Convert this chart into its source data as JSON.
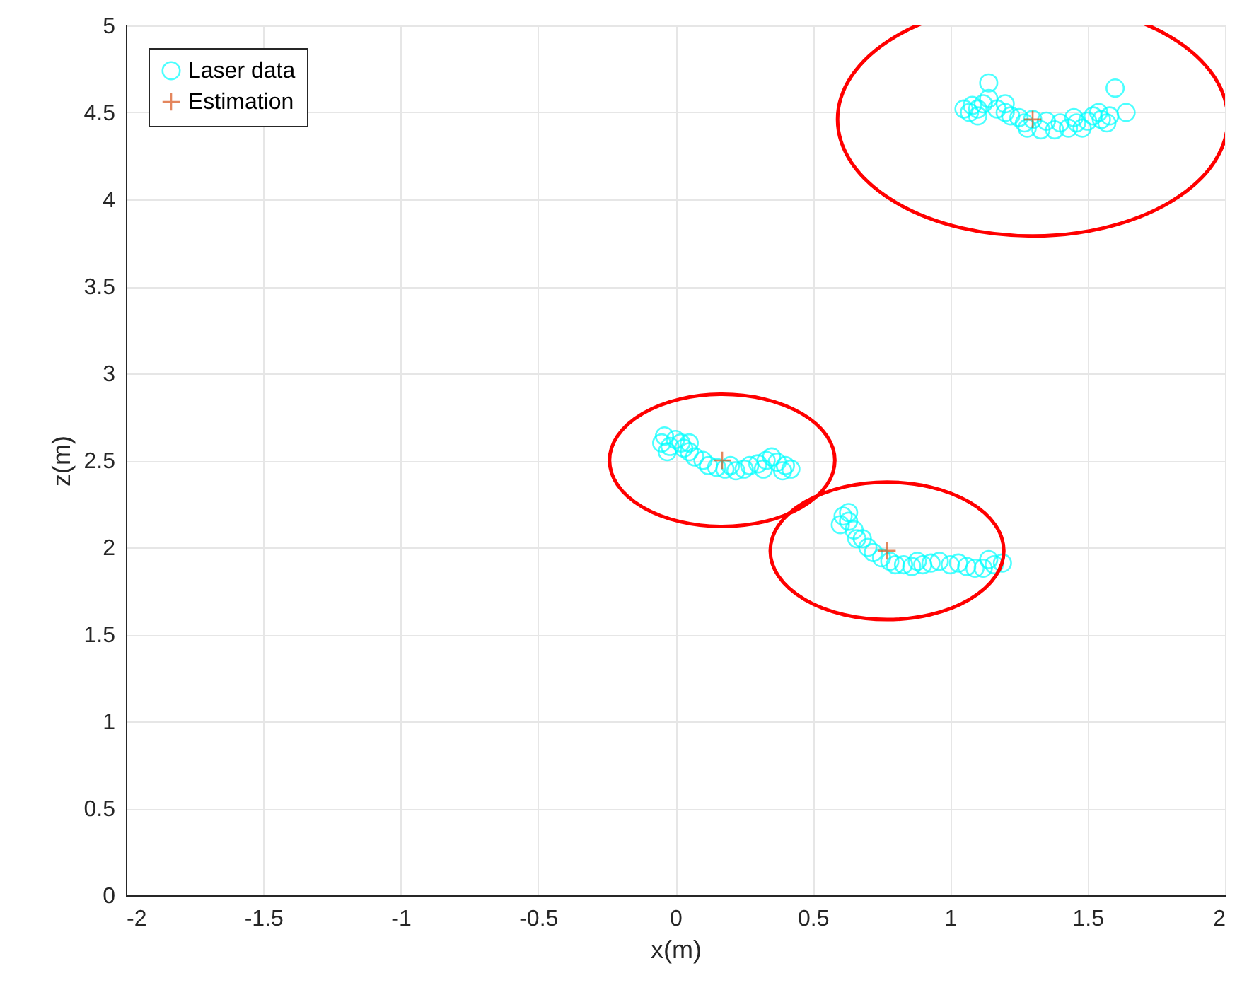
{
  "chart_data": {
    "type": "scatter",
    "xlabel": "x(m)",
    "ylabel": "z(m)",
    "xlim": [
      -2,
      2
    ],
    "xticks": [
      -2,
      -1.5,
      -1,
      -0.5,
      0,
      0.5,
      1,
      1.5,
      2
    ],
    "ylim": [
      0,
      5
    ],
    "yticks": [
      0,
      0.5,
      1,
      1.5,
      2,
      2.5,
      3,
      3.5,
      4,
      4.5,
      5
    ],
    "grid": true,
    "legend": "top left",
    "series": [
      {
        "name": "Laser data",
        "color": "#00ffff",
        "marker": "circle",
        "x": [
          1.05,
          1.07,
          1.08,
          1.1,
          1.12,
          1.14,
          1.14,
          1.17,
          1.2,
          1.22,
          1.25,
          1.27,
          1.28,
          1.3,
          1.33,
          1.35,
          1.38,
          1.4,
          1.43,
          1.46,
          1.48,
          1.5,
          1.52,
          1.54,
          1.55,
          1.57,
          1.58,
          1.6,
          1.64,
          1.1,
          1.2,
          1.45,
          -0.05,
          -0.04,
          -0.02,
          0,
          0.02,
          0.03,
          0.05,
          0.07,
          0.1,
          0.12,
          0.15,
          0.18,
          0.2,
          0.22,
          0.25,
          0.27,
          0.3,
          0.33,
          0.35,
          0.37,
          0.4,
          0.42,
          0.39,
          0.32,
          0.05,
          -0.03,
          0.6,
          0.61,
          0.63,
          0.65,
          0.66,
          0.68,
          0.7,
          0.72,
          0.75,
          0.78,
          0.8,
          0.83,
          0.86,
          0.9,
          0.93,
          0.96,
          1.0,
          1.03,
          1.06,
          1.09,
          1.12,
          1.14,
          1.16,
          1.19,
          0.88,
          0.63
        ],
        "values": [
          4.52,
          4.5,
          4.54,
          4.52,
          4.55,
          4.58,
          4.67,
          4.52,
          4.5,
          4.48,
          4.47,
          4.44,
          4.41,
          4.46,
          4.4,
          4.45,
          4.4,
          4.44,
          4.41,
          4.44,
          4.41,
          4.45,
          4.48,
          4.5,
          4.46,
          4.44,
          4.48,
          4.64,
          4.5,
          4.48,
          4.55,
          4.47,
          2.6,
          2.64,
          2.58,
          2.62,
          2.6,
          2.57,
          2.55,
          2.52,
          2.5,
          2.47,
          2.46,
          2.45,
          2.47,
          2.44,
          2.45,
          2.47,
          2.48,
          2.5,
          2.52,
          2.49,
          2.47,
          2.45,
          2.44,
          2.45,
          2.6,
          2.55,
          2.13,
          2.18,
          2.15,
          2.1,
          2.05,
          2.05,
          2.0,
          1.97,
          1.94,
          1.92,
          1.9,
          1.9,
          1.89,
          1.9,
          1.91,
          1.92,
          1.9,
          1.91,
          1.89,
          1.88,
          1.88,
          1.93,
          1.9,
          1.91,
          1.92,
          2.2
        ]
      },
      {
        "name": "Estimation",
        "color": "#d95319",
        "marker": "cross",
        "x": [
          0.17,
          0.77,
          1.3
        ],
        "values": [
          2.5,
          1.98,
          4.46
        ]
      }
    ]
  }
}
